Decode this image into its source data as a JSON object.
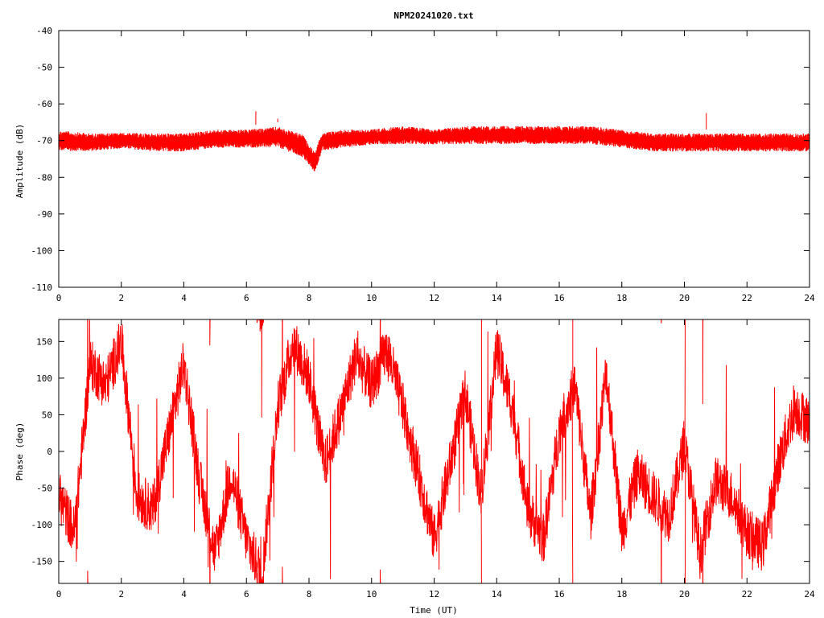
{
  "title": "NPM20241020.txt",
  "chart_data": [
    {
      "type": "line",
      "ylabel": "Amplitude (dB)",
      "xlabel": "",
      "xlim": [
        0,
        24
      ],
      "ylim": [
        -110,
        -40
      ],
      "x_ticks": [
        0,
        2,
        4,
        6,
        8,
        10,
        12,
        14,
        16,
        18,
        20,
        22,
        24
      ],
      "y_ticks": [
        -40,
        -50,
        -60,
        -70,
        -80,
        -90,
        -100,
        -110
      ],
      "series": [
        {
          "color": "#ff0000",
          "envelope_note_values": "approx min/max per hour",
          "x": [
            0,
            1,
            2,
            3,
            4,
            5,
            6,
            7,
            7.8,
            8.0,
            8.2,
            8.4,
            9,
            10,
            11,
            12,
            13,
            14,
            15,
            16,
            17,
            18,
            19,
            20,
            21,
            22,
            23,
            24
          ],
          "upper": [
            -66,
            -67,
            -67,
            -67,
            -67,
            -66,
            -66,
            -65,
            -67,
            -70,
            -72,
            -67,
            -66,
            -66,
            -65,
            -66,
            -65,
            -65,
            -65,
            -65,
            -65,
            -66,
            -67,
            -67,
            -67,
            -67,
            -67,
            -67
          ],
          "lower": [
            -74,
            -74,
            -73,
            -74,
            -74,
            -73,
            -73,
            -73,
            -76,
            -78,
            -80,
            -74,
            -73,
            -72,
            -72,
            -72,
            -72,
            -72,
            -72,
            -72,
            -72,
            -73,
            -74,
            -74,
            -74,
            -74,
            -74,
            -74
          ],
          "spikes": [
            [
              6.3,
              -62
            ],
            [
              7.0,
              -64
            ],
            [
              20.7,
              -62.5
            ]
          ]
        }
      ]
    },
    {
      "type": "line",
      "ylabel": "Phase (deg)",
      "xlabel": "Time (UT)",
      "xlim": [
        0,
        24
      ],
      "ylim": [
        -180,
        180
      ],
      "x_ticks": [
        0,
        2,
        4,
        6,
        8,
        10,
        12,
        14,
        16,
        18,
        20,
        22,
        24
      ],
      "y_ticks": [
        150,
        100,
        50,
        0,
        -50,
        -100,
        -150
      ],
      "series": [
        {
          "color": "#ff0000",
          "x": [
            0,
            0.5,
            1,
            1.5,
            2,
            2.5,
            3,
            3.5,
            4,
            4.5,
            5,
            5.5,
            6,
            6.5,
            7,
            7.5,
            8,
            8.5,
            9,
            9.5,
            10,
            10.5,
            11,
            11.5,
            12,
            12.5,
            13,
            13.5,
            14,
            14.5,
            15,
            15.5,
            16,
            16.5,
            17,
            17.5,
            18,
            18.5,
            19,
            19.5,
            20,
            20.5,
            21,
            21.5,
            22,
            22.5,
            23,
            23.5,
            24
          ],
          "y": [
            -60,
            -110,
            120,
            90,
            150,
            -60,
            -80,
            20,
            120,
            -40,
            -140,
            -30,
            -120,
            -170,
            60,
            150,
            100,
            -20,
            50,
            130,
            90,
            140,
            60,
            -30,
            -120,
            -20,
            80,
            -60,
            140,
            60,
            -80,
            -120,
            30,
            90,
            -90,
            110,
            -110,
            -30,
            -60,
            -90,
            10,
            -140,
            -40,
            -60,
            -110,
            -130,
            -20,
            60,
            40
          ]
        }
      ]
    }
  ]
}
